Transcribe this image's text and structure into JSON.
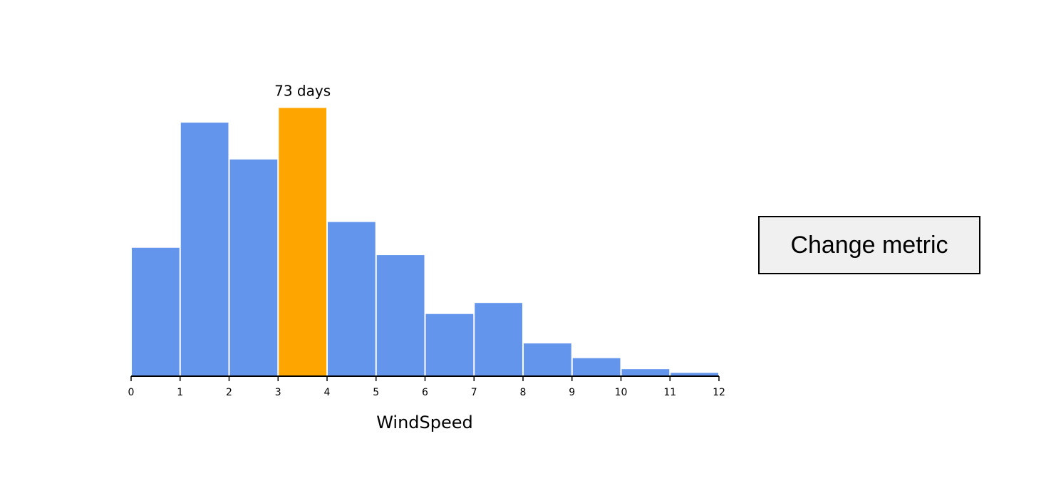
{
  "chart_data": {
    "type": "histogram",
    "bins": [
      0,
      1,
      2,
      3,
      4,
      5,
      6,
      7,
      8,
      9,
      10,
      11,
      12
    ],
    "values": [
      35,
      69,
      59,
      73,
      42,
      33,
      17,
      20,
      9,
      5,
      2,
      1
    ],
    "value_labels": [
      null,
      null,
      null,
      "73 days",
      null,
      null,
      null,
      null,
      null,
      null,
      null,
      null
    ],
    "colors": [
      "#6495ed",
      "#6495ed",
      "#6495ed",
      "#ffa500",
      "#6495ed",
      "#6495ed",
      "#6495ed",
      "#6495ed",
      "#6495ed",
      "#6495ed",
      "#6495ed",
      "#6495ed"
    ],
    "xlim": [
      0,
      12
    ],
    "xticks": [
      0,
      1,
      2,
      3,
      4,
      5,
      6,
      7,
      8,
      9,
      10,
      11,
      12
    ],
    "x_label": "WindSpeed"
  },
  "button": "Change metric"
}
